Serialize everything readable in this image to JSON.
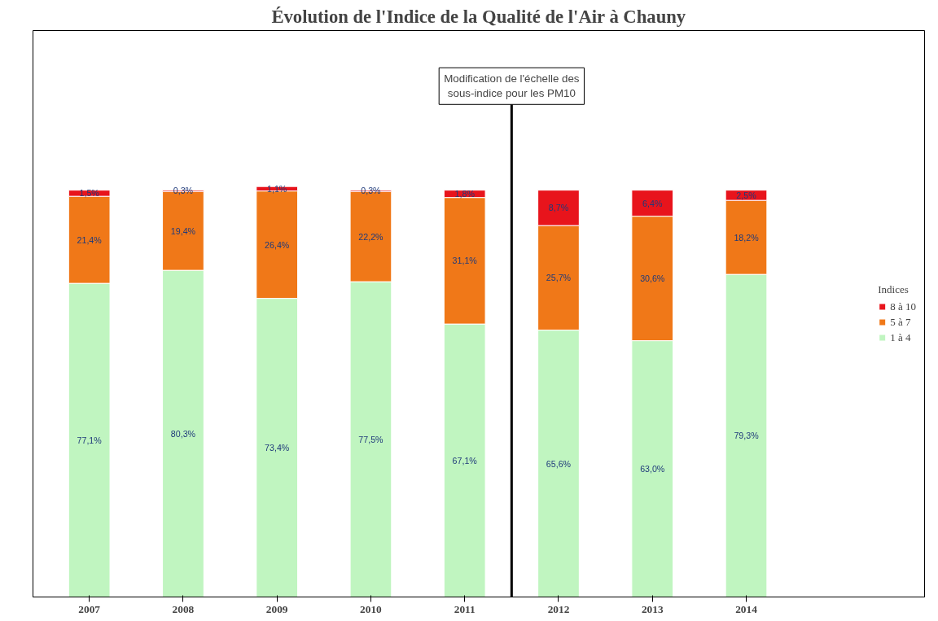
{
  "chart_data": {
    "type": "bar",
    "stacked": true,
    "title": "Évolution de l'Indice de la Qualité de l'Air à Chauny",
    "legend_title": "Indices",
    "legend": "right",
    "grid": false,
    "categories": [
      "2007",
      "2008",
      "2009",
      "2010",
      "2011",
      "2012",
      "2013",
      "2014"
    ],
    "series": [
      {
        "name": "1 à 4",
        "color": "#c0f5c0",
        "values": [
          77.1,
          80.3,
          73.4,
          77.5,
          67.1,
          65.6,
          63.0,
          79.3
        ],
        "value_labels": [
          "77,1%",
          "80,3%",
          "73,4%",
          "77,5%",
          "67,1%",
          "65,6%",
          "63,0%",
          "79,3%"
        ]
      },
      {
        "name": "5 à 7",
        "color": "#f07818",
        "values": [
          21.4,
          19.4,
          26.4,
          22.2,
          31.1,
          25.7,
          30.6,
          18.2
        ],
        "value_labels": [
          "21,4%",
          "19,4%",
          "26,4%",
          "22,2%",
          "31,1%",
          "25,7%",
          "30,6%",
          "18,2%"
        ]
      },
      {
        "name": "8 à 10",
        "color": "#e8141c",
        "values": [
          1.5,
          0.3,
          1.1,
          0.3,
          1.8,
          8.7,
          6.4,
          2.5
        ],
        "value_labels": [
          "1,5%",
          "0,3%",
          "1,1%",
          "0,3%",
          "1,8%",
          "8,7%",
          "6,4%",
          "2,5%"
        ]
      }
    ],
    "annotations": [
      "Modification de l'échelle des\nsous-indice pour les PM10"
    ]
  }
}
